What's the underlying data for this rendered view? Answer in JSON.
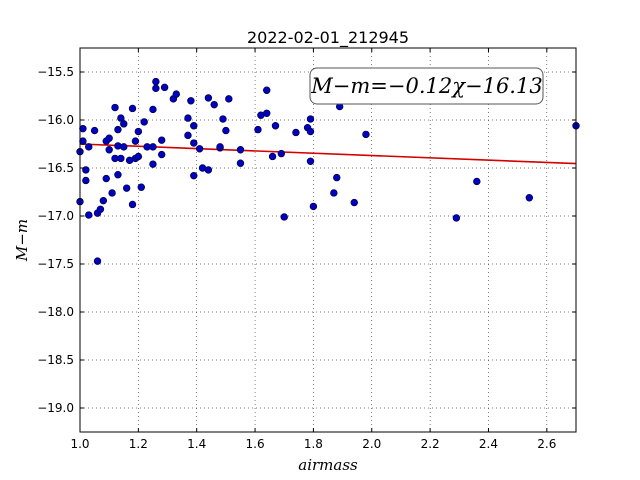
{
  "chart_data": {
    "type": "scatter",
    "title": "2022-02-01_212945",
    "xlabel": "airmass",
    "ylabel": "M−m",
    "xlim": [
      1.0,
      2.7
    ],
    "ylim": [
      -19.25,
      -15.25
    ],
    "invert_y": true,
    "grid": true,
    "x_ticks": [
      1.0,
      1.2,
      1.4,
      1.6,
      1.8,
      2.0,
      2.2,
      2.4,
      2.6
    ],
    "x_tick_labels": [
      "1.0",
      "1.2",
      "1.4",
      "1.6",
      "1.8",
      "2.0",
      "2.2",
      "2.4",
      "2.6"
    ],
    "y_ticks": [
      -15.5,
      -16.0,
      -16.5,
      -17.0,
      -17.5,
      -18.0,
      -18.5,
      -19.0
    ],
    "y_tick_labels": [
      "−15.5",
      "−16.0",
      "−16.5",
      "−17.0",
      "−17.5",
      "−18.0",
      "−18.5",
      "−19.0"
    ],
    "annotation": "M−m=−0.12χ−16.13",
    "annotation_position": "top-right",
    "fit_line": {
      "slope": -0.12,
      "intercept": -16.13,
      "color": "#d40000"
    },
    "point_color": "#0000bf",
    "points": [
      [
        1.0,
        -16.85
      ],
      [
        1.0,
        -16.33
      ],
      [
        1.01,
        -16.09
      ],
      [
        1.01,
        -16.22
      ],
      [
        1.02,
        -16.63
      ],
      [
        1.02,
        -16.52
      ],
      [
        1.03,
        -16.28
      ],
      [
        1.03,
        -16.99
      ],
      [
        1.05,
        -16.11
      ],
      [
        1.06,
        -16.97
      ],
      [
        1.06,
        -17.47
      ],
      [
        1.07,
        -16.93
      ],
      [
        1.08,
        -16.84
      ],
      [
        1.09,
        -16.22
      ],
      [
        1.09,
        -16.61
      ],
      [
        1.1,
        -16.31
      ],
      [
        1.1,
        -16.19
      ],
      [
        1.11,
        -16.76
      ],
      [
        1.12,
        -16.4
      ],
      [
        1.12,
        -15.87
      ],
      [
        1.13,
        -16.27
      ],
      [
        1.13,
        -16.1
      ],
      [
        1.13,
        -16.57
      ],
      [
        1.14,
        -15.98
      ],
      [
        1.14,
        -16.4
      ],
      [
        1.15,
        -16.28
      ],
      [
        1.15,
        -16.04
      ],
      [
        1.16,
        -16.71
      ],
      [
        1.17,
        -16.42
      ],
      [
        1.18,
        -16.88
      ],
      [
        1.18,
        -15.88
      ],
      [
        1.19,
        -16.22
      ],
      [
        1.19,
        -16.4
      ],
      [
        1.2,
        -16.38
      ],
      [
        1.2,
        -16.12
      ],
      [
        1.21,
        -16.7
      ],
      [
        1.22,
        -16.02
      ],
      [
        1.23,
        -16.28
      ],
      [
        1.25,
        -16.46
      ],
      [
        1.25,
        -16.28
      ],
      [
        1.25,
        -15.89
      ],
      [
        1.26,
        -15.67
      ],
      [
        1.26,
        -15.6
      ],
      [
        1.28,
        -16.36
      ],
      [
        1.28,
        -16.21
      ],
      [
        1.29,
        -15.66
      ],
      [
        1.32,
        -15.78
      ],
      [
        1.33,
        -15.73
      ],
      [
        1.37,
        -15.98
      ],
      [
        1.37,
        -16.16
      ],
      [
        1.38,
        -15.8
      ],
      [
        1.39,
        -16.24
      ],
      [
        1.39,
        -16.58
      ],
      [
        1.39,
        -16.06
      ],
      [
        1.41,
        -16.3
      ],
      [
        1.42,
        -16.5
      ],
      [
        1.44,
        -16.52
      ],
      [
        1.44,
        -15.77
      ],
      [
        1.46,
        -15.84
      ],
      [
        1.48,
        -16.29
      ],
      [
        1.48,
        -16.28
      ],
      [
        1.49,
        -15.99
      ],
      [
        1.5,
        -16.11
      ],
      [
        1.51,
        -15.78
      ],
      [
        1.55,
        -16.31
      ],
      [
        1.55,
        -16.45
      ],
      [
        1.61,
        -16.1
      ],
      [
        1.62,
        -15.95
      ],
      [
        1.64,
        -15.93
      ],
      [
        1.64,
        -15.69
      ],
      [
        1.66,
        -16.38
      ],
      [
        1.67,
        -16.06
      ],
      [
        1.69,
        -16.35
      ],
      [
        1.7,
        -17.01
      ],
      [
        1.74,
        -16.13
      ],
      [
        1.78,
        -16.08
      ],
      [
        1.79,
        -15.99
      ],
      [
        1.79,
        -16.12
      ],
      [
        1.79,
        -16.43
      ],
      [
        1.8,
        -16.9
      ],
      [
        1.87,
        -16.76
      ],
      [
        1.88,
        -16.6
      ],
      [
        1.89,
        -15.86
      ],
      [
        1.94,
        -16.86
      ],
      [
        1.98,
        -16.15
      ],
      [
        2.29,
        -17.02
      ],
      [
        2.36,
        -16.64
      ],
      [
        2.54,
        -16.81
      ],
      [
        2.7,
        -16.06
      ]
    ]
  }
}
